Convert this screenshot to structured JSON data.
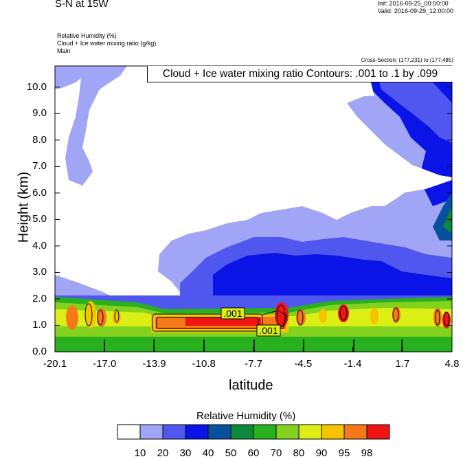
{
  "header": {
    "title": "S-N at 15W",
    "init": "Init: 2016-09-25_00:00:00",
    "valid": "Valid: 2016-09-29_12:00:00",
    "fields": [
      "Relative Humidity   (%)",
      "Cloud + Ice water mixing ratio   (g/kg)",
      "Main"
    ],
    "cross_section": "Cross-Section: (177,231) to (177,485)",
    "contour_info": "Cloud + Ice water mixing ratio Contours: .001 to .1 by .099"
  },
  "chart_data": {
    "type": "heatmap",
    "title": "S-N at 15W",
    "xlabel": "latitude",
    "ylabel": "Height (km)",
    "x_ticks": [
      "-20.1",
      "-17.0",
      "-13.9",
      "-10.8",
      "-7.7",
      "-4.5",
      "-1.4",
      "1.7",
      "4.8"
    ],
    "y_ticks": [
      "0.0",
      "1.0",
      "2.0",
      "3.0",
      "4.0",
      "5.0",
      "6.0",
      "7.0",
      "8.0",
      "9.0",
      "10.0"
    ],
    "xlim": [
      -20.1,
      4.8
    ],
    "ylim": [
      0.0,
      10.8
    ],
    "colorbar": {
      "title": "Relative Humidity  (%)",
      "levels": [
        "10",
        "20",
        "30",
        "40",
        "50",
        "60",
        "70",
        "80",
        "90",
        "95",
        "98"
      ],
      "colors": [
        "#ffffff",
        "#a0a5f5",
        "#5057ee",
        "#0a14e6",
        "#08509c",
        "#0a8a3a",
        "#28b01e",
        "#82d21e",
        "#dcef14",
        "#f5c300",
        "#f57819",
        "#f01414"
      ]
    },
    "contour_labels": [
      ".001",
      ".001"
    ]
  }
}
